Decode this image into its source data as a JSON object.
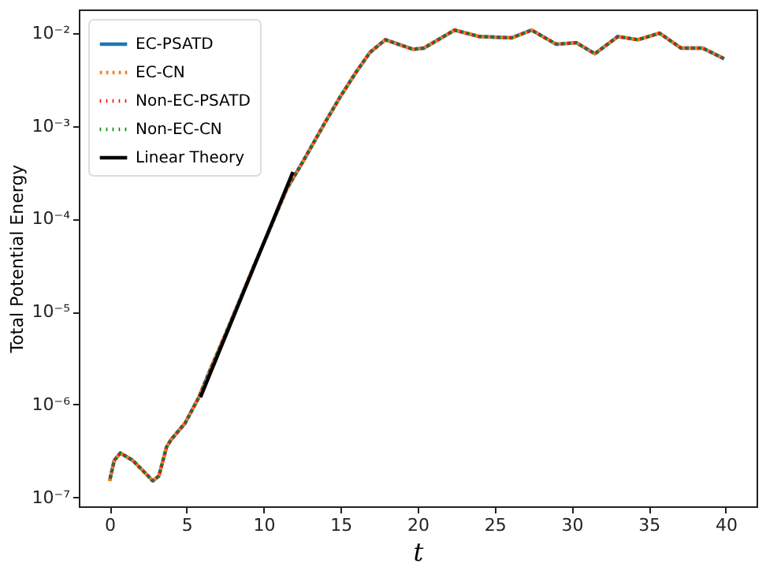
{
  "chart_data": {
    "type": "line",
    "xlabel": "t",
    "ylabel": "Total Potential Energy",
    "log": "y",
    "grid": false,
    "legend": "top left",
    "x": [
      0,
      0.3,
      0.7,
      1.5,
      2.5,
      2.8,
      3.2,
      3.7,
      4.0,
      4.9,
      5.8,
      6.5,
      7.5,
      8.5,
      9.5,
      10.5,
      11.5,
      12.5,
      13,
      14,
      15,
      16,
      16.9,
      17.9,
      19.7,
      20.4,
      22.4,
      24,
      26.1,
      27.4,
      29,
      30.3,
      31.5,
      33,
      34.3,
      35.7,
      37.1,
      38.5,
      39.9
    ],
    "xlim": [
      -2,
      42
    ],
    "xticks": [
      0,
      5,
      10,
      15,
      20,
      25,
      30,
      35,
      40
    ],
    "ylim": [
      8e-08,
      0.018
    ],
    "yticks": [
      {
        "value": 1e-07,
        "label": "10⁻⁷"
      },
      {
        "value": 1e-06,
        "label": "10⁻⁶"
      },
      {
        "value": 1e-05,
        "label": "10⁻⁵"
      },
      {
        "value": 0.0001,
        "label": "10⁻⁴"
      },
      {
        "value": 0.001,
        "label": "10⁻³"
      },
      {
        "value": 0.01,
        "label": "10⁻²"
      }
    ],
    "series": [
      {
        "name": "EC-PSATD",
        "color": "#1f77b4",
        "line_style": "solid",
        "values": [
          1.5e-07,
          2.5e-07,
          3e-07,
          2.5e-07,
          1.7e-07,
          1.5e-07,
          1.7e-07,
          3.5e-07,
          4.2e-07,
          6.3e-07,
          1.2e-06,
          2.3e-06,
          5.6e-06,
          1.4e-05,
          3.5e-05,
          8.5e-05,
          0.00021,
          0.0004,
          0.00056,
          0.0011,
          0.0021,
          0.0038,
          0.0062,
          0.0085,
          0.0067,
          0.0069,
          0.0108,
          0.0092,
          0.0089,
          0.0108,
          0.0076,
          0.0079,
          0.006,
          0.0092,
          0.0085,
          0.01,
          0.0069,
          0.0069,
          0.0053
        ]
      },
      {
        "name": "EC-CN",
        "color": "#ff7f0e",
        "line_style": "dashed",
        "values": [
          1.5e-07,
          2.5e-07,
          3e-07,
          2.5e-07,
          1.7e-07,
          1.5e-07,
          1.7e-07,
          3.5e-07,
          4.2e-07,
          6.3e-07,
          1.2e-06,
          2.3e-06,
          5.6e-06,
          1.4e-05,
          3.5e-05,
          8.5e-05,
          0.00021,
          0.0004,
          0.00056,
          0.0011,
          0.0021,
          0.0038,
          0.0062,
          0.0085,
          0.0067,
          0.0069,
          0.0108,
          0.0092,
          0.0089,
          0.0108,
          0.0076,
          0.0079,
          0.006,
          0.0092,
          0.0085,
          0.01,
          0.0069,
          0.0069,
          0.0053
        ]
      },
      {
        "name": "Non-EC-PSATD",
        "color": "#ff0000",
        "line_style": "dotted",
        "values": [
          1.5e-07,
          2.5e-07,
          3e-07,
          2.5e-07,
          1.7e-07,
          1.5e-07,
          1.7e-07,
          3.5e-07,
          4.2e-07,
          6.3e-07,
          1.2e-06,
          2.3e-06,
          5.6e-06,
          1.4e-05,
          3.5e-05,
          8.5e-05,
          0.00021,
          0.0004,
          0.00056,
          0.0011,
          0.0021,
          0.0038,
          0.0062,
          0.0085,
          0.0067,
          0.0069,
          0.0108,
          0.0092,
          0.0089,
          0.0108,
          0.0076,
          0.0079,
          0.006,
          0.0092,
          0.0085,
          0.01,
          0.0069,
          0.0069,
          0.0053
        ]
      },
      {
        "name": "Non-EC-CN",
        "color": "#008000",
        "line_style": "dotted",
        "values": [
          1.5e-07,
          2.5e-07,
          3e-07,
          2.5e-07,
          1.7e-07,
          1.5e-07,
          1.7e-07,
          3.5e-07,
          4.2e-07,
          6.3e-07,
          1.2e-06,
          2.3e-06,
          5.6e-06,
          1.4e-05,
          3.5e-05,
          8.5e-05,
          0.00021,
          0.0004,
          0.00056,
          0.0011,
          0.0021,
          0.0038,
          0.0062,
          0.0085,
          0.0067,
          0.0069,
          0.0108,
          0.0092,
          0.0089,
          0.0108,
          0.0076,
          0.0079,
          0.006,
          0.0092,
          0.0085,
          0.01,
          0.0069,
          0.0069,
          0.0053
        ]
      },
      {
        "name": "Linear Theory",
        "color": "#000000",
        "line_style": "solid",
        "x": [
          5.9,
          11.9
        ],
        "values": [
          1.2e-06,
          0.00032
        ]
      }
    ]
  }
}
